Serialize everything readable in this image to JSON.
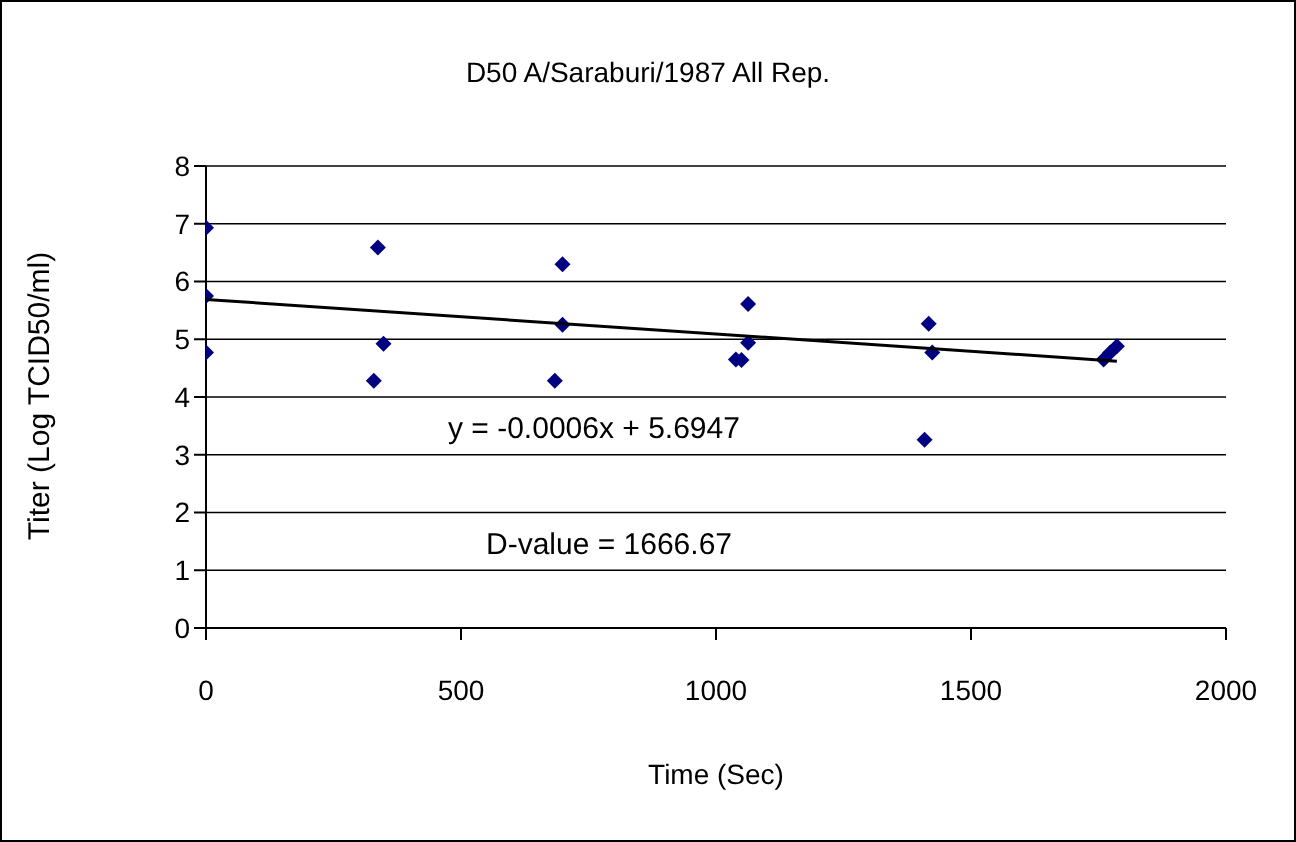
{
  "chart_data": {
    "type": "scatter",
    "title": "D50 A/Saraburi/1987 All Rep.",
    "xlabel": "Time (Sec)",
    "ylabel": "Titer (Log TCID50/ml)",
    "x": [
      0,
      0,
      0,
      337,
      348,
      329,
      699,
      699,
      684,
      1039,
      1063,
      1063,
      1050,
      1417,
      1424,
      1409,
      1760,
      1773,
      1786
    ],
    "series": [
      {
        "color": "#000080",
        "values": [
          6.93,
          5.75,
          4.77,
          6.59,
          4.92,
          4.28,
          6.3,
          5.25,
          4.28,
          4.65,
          5.61,
          4.94,
          4.64,
          5.27,
          4.77,
          3.26,
          4.65,
          4.77,
          4.88
        ]
      },
      {
        "type": "line",
        "color": "#000000",
        "marker": "none",
        "x": [
          0,
          1786
        ],
        "values": [
          5.69,
          4.62
        ]
      }
    ],
    "annotations": [
      "y = -0.0006x + 5.6947",
      "D-value = 1666.67"
    ],
    "xlim": [
      0,
      2000
    ],
    "xticks": [
      0,
      500,
      1000,
      1500,
      2000
    ],
    "ylim": [
      0,
      8
    ],
    "yticks": [
      0,
      1,
      2,
      3,
      4,
      5,
      6,
      7,
      8
    ],
    "grid": "y",
    "marker": "diamond"
  }
}
